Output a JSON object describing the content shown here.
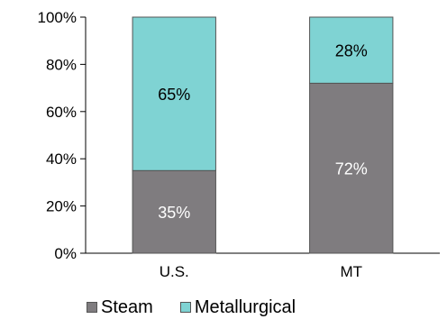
{
  "chart_data": {
    "type": "bar",
    "stacked": true,
    "categories": [
      "U.S.",
      "MT"
    ],
    "series": [
      {
        "name": "Steam",
        "values": [
          35,
          72
        ],
        "labels": [
          "35%",
          "72%"
        ],
        "color": "#7f7c7f",
        "label_color": "#ffffff"
      },
      {
        "name": "Metallurgical",
        "values": [
          65,
          28
        ],
        "labels": [
          "65%",
          "28%"
        ],
        "color": "#7fd3d3",
        "label_color": "#000000"
      }
    ],
    "ylim": [
      0,
      100
    ],
    "yticks": [
      0,
      20,
      40,
      60,
      80,
      100
    ],
    "ytick_labels": [
      "0%",
      "20%",
      "40%",
      "60%",
      "80%",
      "100%"
    ],
    "grid": false,
    "legend_position": "bottom"
  }
}
